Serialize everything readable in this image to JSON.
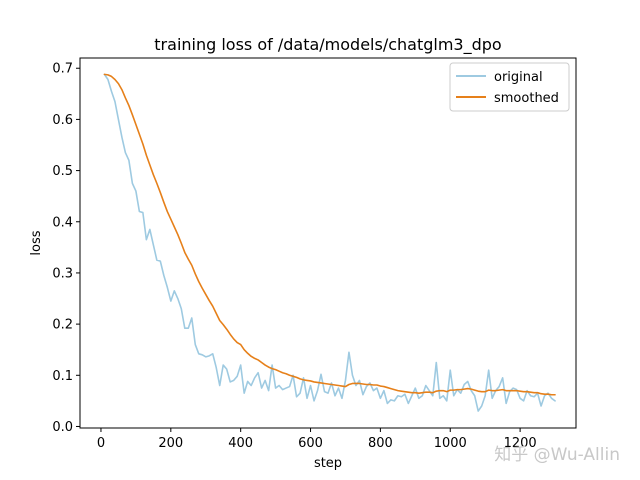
{
  "chart_data": {
    "type": "line",
    "title": "training loss of /data/models/chatglm3_dpo",
    "xlabel": "step",
    "ylabel": "loss",
    "xlim": [
      -60,
      1360
    ],
    "ylim": [
      -0.003,
      0.72
    ],
    "xticks": [
      0,
      200,
      400,
      600,
      800,
      1000,
      1200
    ],
    "yticks": [
      0.0,
      0.1,
      0.2,
      0.3,
      0.4,
      0.5,
      0.6,
      0.7
    ],
    "xtick_labels": [
      "0",
      "200",
      "400",
      "600",
      "800",
      "1000",
      "1200"
    ],
    "ytick_labels": [
      "0.0",
      "0.1",
      "0.2",
      "0.3",
      "0.4",
      "0.5",
      "0.6",
      "0.7"
    ],
    "legend_position": "top-right",
    "series": [
      {
        "name": "original",
        "color": "#9ecae1",
        "x": [
          10,
          20,
          30,
          40,
          50,
          60,
          70,
          80,
          90,
          100,
          110,
          120,
          130,
          140,
          150,
          160,
          170,
          180,
          190,
          200,
          210,
          220,
          230,
          240,
          250,
          260,
          270,
          280,
          290,
          300,
          310,
          320,
          330,
          340,
          350,
          360,
          370,
          380,
          390,
          400,
          410,
          420,
          430,
          440,
          450,
          460,
          470,
          480,
          490,
          500,
          510,
          520,
          530,
          540,
          550,
          560,
          570,
          580,
          590,
          600,
          610,
          620,
          630,
          640,
          650,
          660,
          670,
          680,
          690,
          700,
          710,
          720,
          730,
          740,
          750,
          760,
          770,
          780,
          790,
          800,
          810,
          820,
          830,
          840,
          850,
          860,
          870,
          880,
          890,
          900,
          910,
          920,
          930,
          940,
          950,
          960,
          970,
          980,
          990,
          1000,
          1010,
          1020,
          1030,
          1040,
          1050,
          1060,
          1070,
          1080,
          1090,
          1100,
          1110,
          1120,
          1130,
          1140,
          1150,
          1160,
          1170,
          1180,
          1190,
          1200,
          1210,
          1220,
          1230,
          1240,
          1250,
          1260,
          1270,
          1280,
          1290,
          1300
        ],
        "values": [
          0.688,
          0.678,
          0.655,
          0.635,
          0.6,
          0.565,
          0.535,
          0.52,
          0.475,
          0.46,
          0.42,
          0.418,
          0.365,
          0.385,
          0.355,
          0.325,
          0.323,
          0.295,
          0.272,
          0.245,
          0.265,
          0.25,
          0.23,
          0.192,
          0.192,
          0.212,
          0.16,
          0.142,
          0.14,
          0.136,
          0.138,
          0.142,
          0.115,
          0.08,
          0.12,
          0.112,
          0.087,
          0.09,
          0.098,
          0.12,
          0.065,
          0.088,
          0.08,
          0.095,
          0.105,
          0.075,
          0.09,
          0.07,
          0.12,
          0.075,
          0.08,
          0.072,
          0.075,
          0.078,
          0.1,
          0.058,
          0.065,
          0.095,
          0.055,
          0.08,
          0.05,
          0.07,
          0.102,
          0.068,
          0.065,
          0.085,
          0.06,
          0.075,
          0.055,
          0.09,
          0.145,
          0.1,
          0.08,
          0.09,
          0.062,
          0.078,
          0.085,
          0.07,
          0.075,
          0.055,
          0.07,
          0.045,
          0.052,
          0.05,
          0.06,
          0.058,
          0.063,
          0.045,
          0.06,
          0.075,
          0.055,
          0.06,
          0.08,
          0.07,
          0.06,
          0.125,
          0.055,
          0.06,
          0.05,
          0.11,
          0.06,
          0.072,
          0.065,
          0.082,
          0.088,
          0.07,
          0.06,
          0.03,
          0.04,
          0.06,
          0.11,
          0.055,
          0.07,
          0.078,
          0.095,
          0.045,
          0.068,
          0.075,
          0.072,
          0.055,
          0.05,
          0.07,
          0.06,
          0.058,
          0.065,
          0.04,
          0.06,
          0.065,
          0.055,
          0.05
        ]
      },
      {
        "name": "smoothed",
        "color": "#e6801a",
        "x": [
          10,
          20,
          30,
          40,
          50,
          60,
          70,
          80,
          90,
          100,
          110,
          120,
          130,
          140,
          150,
          160,
          170,
          180,
          190,
          200,
          210,
          220,
          230,
          240,
          250,
          260,
          270,
          280,
          290,
          300,
          310,
          320,
          330,
          340,
          350,
          360,
          370,
          380,
          390,
          400,
          410,
          420,
          430,
          440,
          450,
          460,
          470,
          480,
          490,
          500,
          510,
          520,
          530,
          540,
          550,
          560,
          570,
          580,
          590,
          600,
          610,
          620,
          630,
          640,
          650,
          660,
          670,
          680,
          690,
          700,
          710,
          720,
          730,
          740,
          750,
          760,
          770,
          780,
          790,
          800,
          810,
          820,
          830,
          840,
          850,
          860,
          870,
          880,
          890,
          900,
          910,
          920,
          930,
          940,
          950,
          960,
          970,
          980,
          990,
          1000,
          1010,
          1020,
          1030,
          1040,
          1050,
          1060,
          1070,
          1080,
          1090,
          1100,
          1110,
          1120,
          1130,
          1140,
          1150,
          1160,
          1170,
          1180,
          1190,
          1200,
          1210,
          1220,
          1230,
          1240,
          1250,
          1260,
          1270,
          1280,
          1290,
          1300
        ],
        "values": [
          0.688,
          0.687,
          0.684,
          0.678,
          0.67,
          0.658,
          0.642,
          0.627,
          0.609,
          0.59,
          0.571,
          0.552,
          0.53,
          0.511,
          0.492,
          0.475,
          0.457,
          0.438,
          0.42,
          0.405,
          0.39,
          0.375,
          0.358,
          0.34,
          0.327,
          0.315,
          0.298,
          0.283,
          0.27,
          0.258,
          0.246,
          0.235,
          0.221,
          0.207,
          0.199,
          0.19,
          0.18,
          0.171,
          0.164,
          0.16,
          0.15,
          0.143,
          0.137,
          0.133,
          0.13,
          0.125,
          0.12,
          0.116,
          0.113,
          0.111,
          0.108,
          0.105,
          0.103,
          0.1,
          0.098,
          0.096,
          0.093,
          0.091,
          0.09,
          0.089,
          0.087,
          0.086,
          0.085,
          0.084,
          0.083,
          0.082,
          0.081,
          0.08,
          0.079,
          0.078,
          0.082,
          0.084,
          0.084,
          0.084,
          0.083,
          0.082,
          0.082,
          0.081,
          0.081,
          0.079,
          0.078,
          0.076,
          0.074,
          0.072,
          0.07,
          0.069,
          0.068,
          0.067,
          0.066,
          0.066,
          0.065,
          0.066,
          0.067,
          0.067,
          0.066,
          0.069,
          0.07,
          0.07,
          0.068,
          0.071,
          0.071,
          0.072,
          0.072,
          0.073,
          0.074,
          0.073,
          0.071,
          0.069,
          0.068,
          0.068,
          0.071,
          0.07,
          0.07,
          0.071,
          0.072,
          0.07,
          0.07,
          0.07,
          0.07,
          0.069,
          0.068,
          0.068,
          0.067,
          0.066,
          0.066,
          0.064,
          0.063,
          0.063,
          0.062,
          0.062
        ]
      }
    ]
  },
  "watermark": "知乎 @Wu-Allin"
}
